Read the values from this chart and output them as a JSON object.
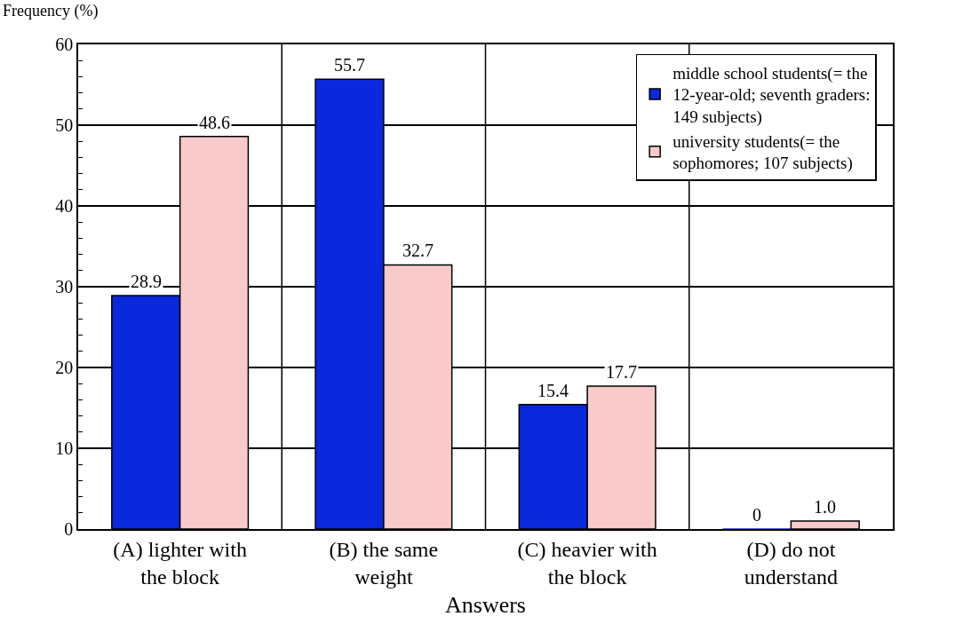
{
  "chart_data": {
    "type": "bar",
    "xlabel": "Answers",
    "ylabel": "Frequency (%)",
    "categories": [
      "(A) lighter with the block",
      "(B) the same weight",
      "(C) heavier with the block",
      "(D) do not understand"
    ],
    "series": [
      {
        "name": "middle school students(= the 12-year-old; seventh graders: 149 subjects)",
        "color": "#0a28dc",
        "values": [
          28.9,
          55.7,
          15.4,
          0
        ],
        "value_labels": [
          "28.9",
          "55.7",
          "15.4",
          "0"
        ]
      },
      {
        "name": "university students(= the sophomores; 107 subjects)",
        "color": "#f9caca",
        "values": [
          48.6,
          32.7,
          17.7,
          1.0
        ],
        "value_labels": [
          "48.6",
          "32.7",
          "17.7",
          "1.0"
        ]
      }
    ],
    "ylim": [
      0,
      60
    ],
    "yticks": [
      0,
      10,
      20,
      30,
      40,
      50,
      60
    ],
    "grid": true,
    "legend": "top right"
  }
}
